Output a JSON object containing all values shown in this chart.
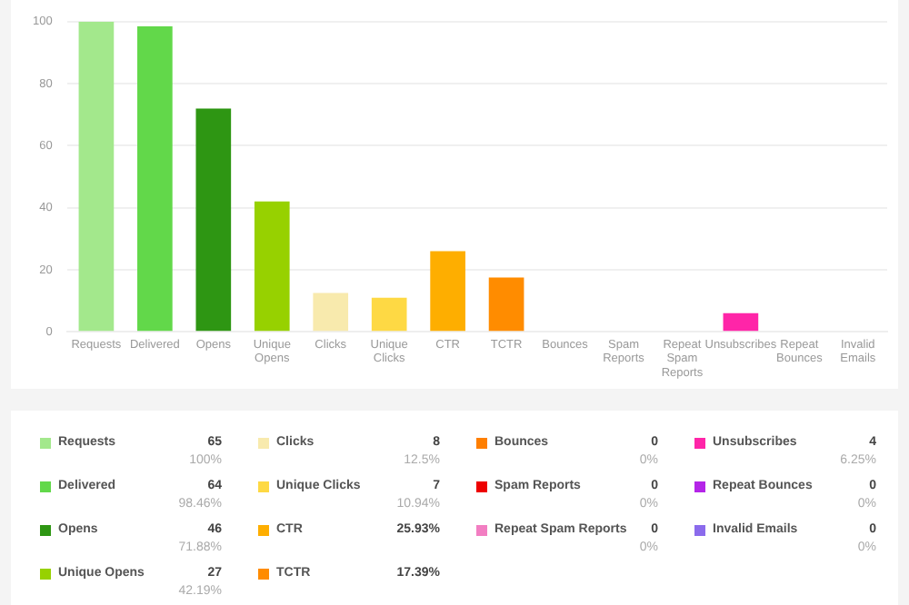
{
  "chart_data": [
    {
      "type": "bar",
      "categories": [
        "Requests",
        "Delivered",
        "Opens",
        "Unique Opens",
        "Clicks",
        "Unique Clicks",
        "CTR",
        "TCTR",
        "Bounces",
        "Spam Reports",
        "Repeat Spam Reports",
        "Unsubscribes",
        "Repeat Bounces",
        "Invalid Emails"
      ],
      "values": [
        100,
        98.5,
        72,
        42,
        12.5,
        11,
        26,
        17.5,
        0,
        0,
        0,
        6,
        0,
        0
      ],
      "colors": [
        "#a3e88c",
        "#62d84a",
        "#2e9613",
        "#97d100",
        "#f8eaad",
        "#fed944",
        "#feae00",
        "#ff8c00",
        "#ff7f00",
        "#ee0000",
        "#f27ec2",
        "#ff25a8",
        "#b425e8",
        "#8b6bec"
      ],
      "ylim": [
        0,
        100
      ],
      "yticks": [
        0,
        20,
        40,
        60,
        80,
        100
      ],
      "grid": "y"
    },
    {
      "type": "other",
      "annotations": [
        "Requests\n65\n100%",
        "Delivered\n64\n98.46%",
        "Opens\n46\n71.88%",
        "Unique Opens\n27\n42.19%",
        "Clicks\n8\n12.5%",
        "Unique Clicks\n7\n10.94%",
        "CTR\n25.93%",
        "TCTR\n17.39%",
        "Bounces\n0\n0%",
        "Spam Reports\n0\n0%",
        "Repeat Spam Reports\n0\n0%",
        "Unsubscribes\n4\n6.25%",
        "Repeat Bounces\n0\n0%",
        "Invalid Emails\n0\n0%"
      ]
    }
  ]
}
